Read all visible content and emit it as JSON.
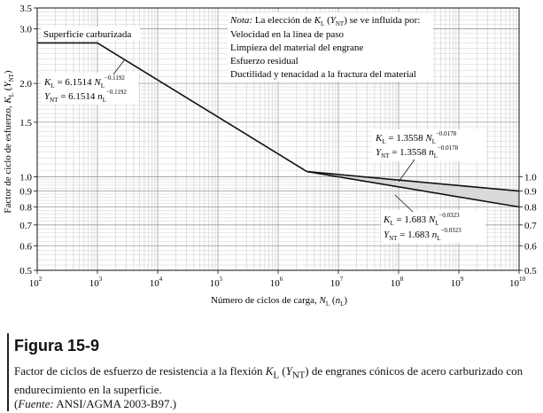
{
  "chart_data": {
    "type": "line",
    "x_scale": "log",
    "y_scale": "log",
    "xlim": [
      100,
      10000000000
    ],
    "ylim": [
      0.5,
      3.5
    ],
    "x_ticks": [
      {
        "value": 100,
        "base": "10",
        "exp": "2"
      },
      {
        "value": 1000,
        "base": "10",
        "exp": "3"
      },
      {
        "value": 10000,
        "base": "10",
        "exp": "4"
      },
      {
        "value": 100000,
        "base": "10",
        "exp": "5"
      },
      {
        "value": 1000000,
        "base": "10",
        "exp": "6"
      },
      {
        "value": 10000000,
        "base": "10",
        "exp": "7"
      },
      {
        "value": 100000000,
        "base": "10",
        "exp": "8"
      },
      {
        "value": 1000000000,
        "base": "10",
        "exp": "9"
      },
      {
        "value": 10000000000,
        "base": "10",
        "exp": "10"
      }
    ],
    "y_ticks_left": [
      {
        "value": 0.5,
        "label": "0.5"
      },
      {
        "value": 0.6,
        "label": "0.6"
      },
      {
        "value": 0.7,
        "label": "0.7"
      },
      {
        "value": 0.8,
        "label": "0.8"
      },
      {
        "value": 0.9,
        "label": "0.9"
      },
      {
        "value": 1.0,
        "label": "1.0"
      },
      {
        "value": 1.5,
        "label": "1.5"
      },
      {
        "value": 2.0,
        "label": "2.0"
      },
      {
        "value": 3.0,
        "label": "3.0"
      },
      {
        "value": 3.5,
        "label": "3.5"
      }
    ],
    "y_ticks_right": [
      {
        "value": 0.5,
        "label": "0.5"
      },
      {
        "value": 0.6,
        "label": "0.6"
      },
      {
        "value": 0.7,
        "label": "0.7"
      },
      {
        "value": 0.8,
        "label": "0.8"
      },
      {
        "value": 0.9,
        "label": "0.9"
      },
      {
        "value": 1.0,
        "label": "1.0"
      }
    ],
    "xlabel": {
      "text": "Número de ciclos de carga, ",
      "var": "N",
      "sub": "L",
      "paren_open": " (",
      "var2": "n",
      "sub2": "L",
      "paren_close": ")"
    },
    "ylabel": {
      "text": "Factor de ciclo de esfuerzo, ",
      "var": "K",
      "sub": "L",
      "paren_open": " (",
      "var2": "Y",
      "sub2": "NT",
      "paren_close": ")"
    },
    "grid": true,
    "series": [
      {
        "x": [
          100,
          1000
        ],
        "y": [
          2.7,
          2.7
        ]
      },
      {
        "x": [
          1000,
          3000000
        ],
        "y": [
          2.7,
          1.04
        ]
      },
      {
        "x": [
          3000000,
          10000000000
        ],
        "y": [
          1.04,
          0.9
        ]
      },
      {
        "x": [
          3000000,
          10000000000
        ],
        "y": [
          1.04,
          0.8
        ]
      }
    ],
    "shaded_band": {
      "x": [
        3000000,
        10000000000
      ],
      "upper": [
        1.04,
        0.9
      ],
      "lower": [
        1.04,
        0.8
      ],
      "color": "#d9d9d9"
    },
    "annotations": {
      "surface_label": "Superficie carburizada",
      "eq1_line1": {
        "lhs": "K",
        "lhs_sub": "L",
        "eq": " = 6.1514 ",
        "var": "N",
        "var_sub": "L",
        "exp": "−0.1192"
      },
      "eq1_line2": {
        "lhs": "Y",
        "lhs_sub": "NT",
        "eq": " = 6.1514 ",
        "var": "n",
        "var_sub": "L",
        "exp": "−0.1192"
      },
      "eq2_line1": {
        "lhs": "K",
        "lhs_sub": "L",
        "eq": " = 1.3558 ",
        "var": "N",
        "var_sub": "L",
        "exp": "−0.0178"
      },
      "eq2_line2": {
        "lhs": "Y",
        "lhs_sub": "NT",
        "eq": " = 1.3558 ",
        "var": "n",
        "var_sub": "L",
        "exp": "−0.0178"
      },
      "eq3_line1": {
        "lhs": "K",
        "lhs_sub": "L",
        "eq": " = 1.683 ",
        "var": "N",
        "var_sub": "L",
        "exp": "−0.0323"
      },
      "eq3_line2": {
        "lhs": "Y",
        "lhs_sub": "NT",
        "eq": " = 1.683 ",
        "var": "n",
        "var_sub": "L",
        "exp": "−0.0323"
      },
      "note_head": {
        "italic": "Nota:",
        "text": " La elección de ",
        "var": "K",
        "sub": "L",
        "paren_open": " (",
        "var2": "Y",
        "sub2": "NT",
        "paren_close": ")",
        "tail": " se ve influida por:"
      },
      "note_items": [
        "Velocidad en la línea de paso",
        "Limpieza del material del engrane",
        "Esfuerzo residual",
        "Ductilidad y tenacidad a la fractura del material"
      ]
    }
  },
  "figure": {
    "title": "Figura 15-9",
    "caption_pre": "Factor de ciclos de esfuerzo de resistencia a la flexión ",
    "caption_var": "K",
    "caption_sub": "L",
    "caption_paren_open": " (",
    "caption_var2": "Y",
    "caption_sub2": "NT",
    "caption_paren_close": ")",
    "caption_post": " de engranes cónicos de acero carburizado con endurecimiento en la superficie.",
    "source_label": "Fuente:",
    "source_text": " ANSI/AGMA 2003-B97.)",
    "source_open": "("
  }
}
